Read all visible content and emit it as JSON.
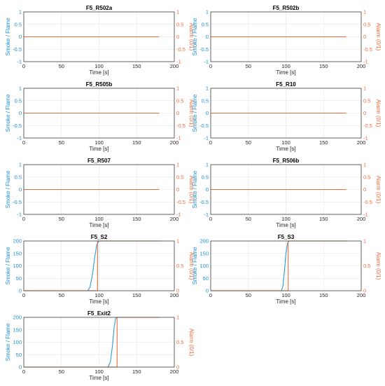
{
  "colors": {
    "smoke": "#2a9ad6",
    "alarm": "#f26b3a",
    "left_axis": "#1a8fd0",
    "right_axis": "#f06a3c",
    "grid": "#e3e3e3",
    "frame": "#262626"
  },
  "chart_data": [
    {
      "type": "line",
      "title": "F5_R502a",
      "xlabel": "Time [s]",
      "ylabel": "Smoke / Flame",
      "ylabel_right": "Alarm (0/1)",
      "xlim": [
        0,
        200
      ],
      "ylim": [
        -1,
        1
      ],
      "ylim_right": [
        -1,
        1
      ],
      "xticks": [
        0,
        50,
        100,
        150,
        200
      ],
      "yticks": [
        -1,
        -0.5,
        0,
        0.5,
        1
      ],
      "yticks_right": [
        -1,
        -0.5,
        0,
        0.5,
        1
      ],
      "grid": true,
      "series": [
        {
          "axis": "left",
          "x": [
            0,
            180
          ],
          "values": [
            0,
            0
          ]
        },
        {
          "axis": "right",
          "x": [
            0,
            180
          ],
          "values": [
            0,
            0
          ]
        }
      ]
    },
    {
      "type": "line",
      "title": "F5_R502b",
      "xlabel": "Time [s]",
      "ylabel": "Smoke / Flame",
      "ylabel_right": "Alarm (0/1)",
      "xlim": [
        0,
        200
      ],
      "ylim": [
        -1,
        1
      ],
      "ylim_right": [
        -1,
        1
      ],
      "xticks": [
        0,
        50,
        100,
        150,
        200
      ],
      "yticks": [
        -1,
        -0.5,
        0,
        0.5,
        1
      ],
      "yticks_right": [
        -1,
        -0.5,
        0,
        0.5,
        1
      ],
      "grid": true,
      "series": [
        {
          "axis": "left",
          "x": [
            0,
            180
          ],
          "values": [
            0,
            0
          ]
        },
        {
          "axis": "right",
          "x": [
            0,
            180
          ],
          "values": [
            0,
            0
          ]
        }
      ]
    },
    {
      "type": "line",
      "title": "F5_R505b",
      "xlabel": "Time [s]",
      "ylabel": "Smoke / Flame",
      "ylabel_right": "Alarm (0/1)",
      "xlim": [
        0,
        200
      ],
      "ylim": [
        -1,
        1
      ],
      "ylim_right": [
        -1,
        1
      ],
      "xticks": [
        0,
        50,
        100,
        150,
        200
      ],
      "yticks": [
        -1,
        -0.5,
        0,
        0.5,
        1
      ],
      "yticks_right": [
        -1,
        -0.5,
        0,
        0.5,
        1
      ],
      "grid": true,
      "series": [
        {
          "axis": "left",
          "x": [
            0,
            180
          ],
          "values": [
            0,
            0
          ]
        },
        {
          "axis": "right",
          "x": [
            0,
            180
          ],
          "values": [
            0,
            0
          ]
        }
      ]
    },
    {
      "type": "line",
      "title": "F5_R10",
      "xlabel": "Time [s]",
      "ylabel": "Smoke / Flame",
      "ylabel_right": "Alarm (0/1)",
      "xlim": [
        0,
        200
      ],
      "ylim": [
        -1,
        1
      ],
      "ylim_right": [
        -1,
        1
      ],
      "xticks": [
        0,
        50,
        100,
        150,
        200
      ],
      "yticks": [
        -1,
        -0.5,
        0,
        0.5,
        1
      ],
      "yticks_right": [
        -1,
        -0.5,
        0,
        0.5,
        1
      ],
      "grid": true,
      "series": [
        {
          "axis": "left",
          "x": [
            0,
            180
          ],
          "values": [
            0,
            0
          ]
        },
        {
          "axis": "right",
          "x": [
            0,
            180
          ],
          "values": [
            0,
            0
          ]
        }
      ]
    },
    {
      "type": "line",
      "title": "F5_R507",
      "xlabel": "Time [s]",
      "ylabel": "Smoke / Flame",
      "ylabel_right": "Alarm (0/1)",
      "xlim": [
        0,
        200
      ],
      "ylim": [
        -1,
        1
      ],
      "ylim_right": [
        -1,
        1
      ],
      "xticks": [
        0,
        50,
        100,
        150,
        200
      ],
      "yticks": [
        -1,
        -0.5,
        0,
        0.5,
        1
      ],
      "yticks_right": [
        -1,
        -0.5,
        0,
        0.5,
        1
      ],
      "grid": true,
      "series": [
        {
          "axis": "left",
          "x": [
            0,
            180
          ],
          "values": [
            0,
            0
          ]
        },
        {
          "axis": "right",
          "x": [
            0,
            180
          ],
          "values": [
            0,
            0
          ]
        }
      ]
    },
    {
      "type": "line",
      "title": "F5_R506b",
      "xlabel": "Time [s]",
      "ylabel": "Smoke / Flame",
      "ylabel_right": "Alarm (0/1)",
      "xlim": [
        0,
        200
      ],
      "ylim": [
        -1,
        1
      ],
      "ylim_right": [
        -1,
        1
      ],
      "xticks": [
        0,
        50,
        100,
        150,
        200
      ],
      "yticks": [
        -1,
        -0.5,
        0,
        0.5,
        1
      ],
      "yticks_right": [
        -1,
        -0.5,
        0,
        0.5,
        1
      ],
      "grid": true,
      "series": [
        {
          "axis": "left",
          "x": [
            0,
            180
          ],
          "values": [
            0,
            0
          ]
        },
        {
          "axis": "right",
          "x": [
            0,
            180
          ],
          "values": [
            0,
            0
          ]
        }
      ]
    },
    {
      "type": "line",
      "title": "F5_S2",
      "xlabel": "Time [s]",
      "ylabel": "Smoke / Flame",
      "ylabel_right": "Alarm (0/1)",
      "xlim": [
        0,
        200
      ],
      "ylim": [
        0,
        200
      ],
      "ylim_right": [
        0,
        1
      ],
      "xticks": [
        0,
        50,
        100,
        150,
        200
      ],
      "yticks": [
        0,
        50,
        100,
        150,
        200
      ],
      "yticks_right": [
        0,
        0.5,
        1
      ],
      "grid": true,
      "series": [
        {
          "axis": "left",
          "x": [
            0,
            85,
            88,
            91,
            94,
            97,
            100,
            103,
            180
          ],
          "values": [
            0,
            0,
            15,
            60,
            130,
            185,
            200,
            200,
            200
          ]
        },
        {
          "axis": "right",
          "x": [
            0,
            98,
            98,
            180
          ],
          "values": [
            0,
            0,
            1,
            1
          ]
        }
      ]
    },
    {
      "type": "line",
      "title": "F5_S3",
      "xlabel": "Time [s]",
      "ylabel": "Smoke / Flame",
      "ylabel_right": "Alarm (0/1)",
      "xlim": [
        0,
        200
      ],
      "ylim": [
        0,
        200
      ],
      "ylim_right": [
        0,
        1
      ],
      "xticks": [
        0,
        50,
        100,
        150,
        200
      ],
      "yticks": [
        0,
        50,
        100,
        150,
        200
      ],
      "yticks_right": [
        0,
        0.5,
        1
      ],
      "grid": true,
      "series": [
        {
          "axis": "left",
          "x": [
            0,
            94,
            96,
            98,
            100,
            102,
            104,
            180
          ],
          "values": [
            0,
            0,
            20,
            80,
            150,
            190,
            200,
            200
          ]
        },
        {
          "axis": "right",
          "x": [
            0,
            103,
            103,
            180
          ],
          "values": [
            0,
            0,
            1,
            1
          ]
        }
      ]
    },
    {
      "type": "line",
      "title": "F5_Exit2",
      "xlabel": "Time [s]",
      "ylabel": "Smoke / Flame",
      "ylabel_right": "Alarm (0/1)",
      "xlim": [
        0,
        200
      ],
      "ylim": [
        0,
        200
      ],
      "ylim_right": [
        0,
        1
      ],
      "xticks": [
        0,
        50,
        100,
        150,
        200
      ],
      "yticks": [
        0,
        50,
        100,
        150,
        200
      ],
      "yticks_right": [
        0,
        0.5,
        1
      ],
      "grid": true,
      "series": [
        {
          "axis": "left",
          "x": [
            0,
            112,
            115,
            118,
            120,
            122,
            124,
            180
          ],
          "values": [
            0,
            0,
            20,
            90,
            160,
            195,
            200,
            200
          ]
        },
        {
          "axis": "right",
          "x": [
            0,
            124,
            124,
            180
          ],
          "values": [
            0,
            0,
            1,
            1
          ]
        }
      ]
    }
  ]
}
